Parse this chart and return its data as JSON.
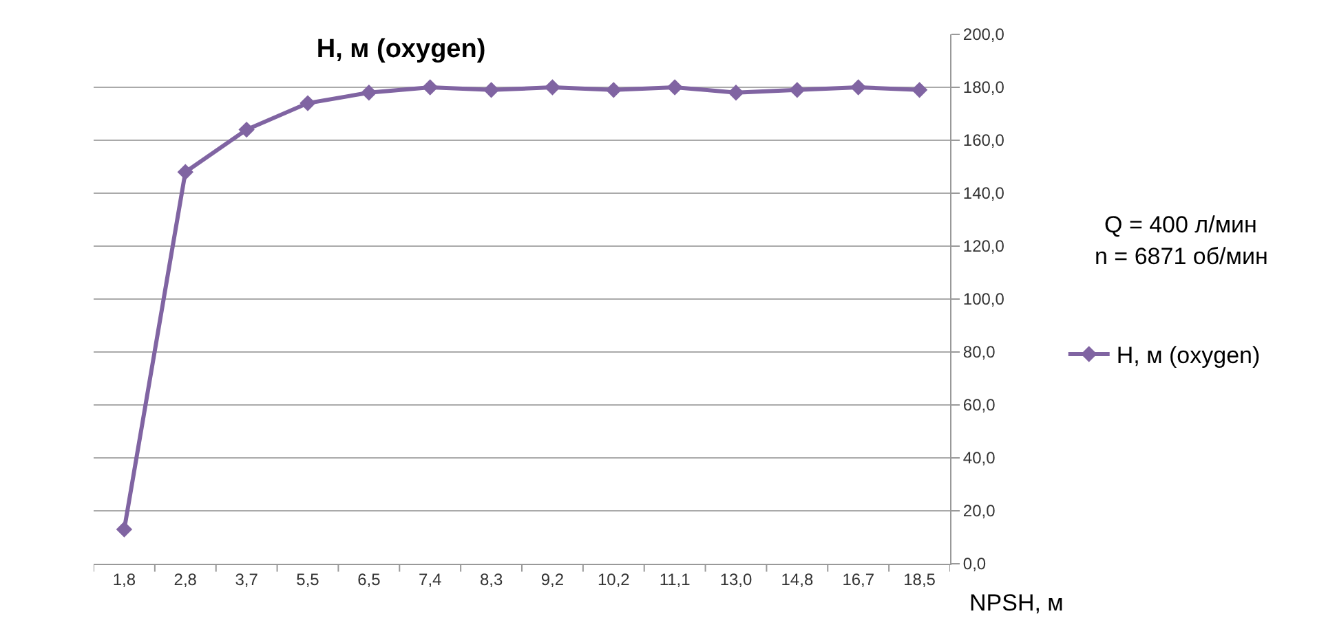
{
  "chart_data": {
    "type": "line",
    "title": "H, м (oxygen)",
    "xlabel": "NPSH, м",
    "categories": [
      "1,8",
      "2,8",
      "3,7",
      "5,5",
      "6,5",
      "7,4",
      "8,3",
      "9,2",
      "10,2",
      "11,1",
      "13,0",
      "14,8",
      "16,7",
      "18,5"
    ],
    "series": [
      {
        "name": "H, м (oxygen)",
        "color": "#8064a2",
        "values": [
          13,
          148,
          164,
          174,
          178,
          180,
          179,
          180,
          179,
          180,
          178,
          179,
          180,
          179
        ]
      }
    ],
    "ylim": [
      0,
      200
    ],
    "yticks": [
      {
        "value": 0,
        "label": "0,0"
      },
      {
        "value": 20,
        "label": "20,0"
      },
      {
        "value": 40,
        "label": "40,0"
      },
      {
        "value": 60,
        "label": "60,0"
      },
      {
        "value": 80,
        "label": "80,0"
      },
      {
        "value": 100,
        "label": "100,0"
      },
      {
        "value": 120,
        "label": "120,0"
      },
      {
        "value": 140,
        "label": "140,0"
      },
      {
        "value": 160,
        "label": "160,0"
      },
      {
        "value": 180,
        "label": "180,0"
      },
      {
        "value": 200,
        "label": "200,0"
      }
    ],
    "annotations": [
      "Q = 400 л/мин",
      "n = 6871 об/мин"
    ],
    "grid": "y",
    "legend": "right",
    "marker": "diamond",
    "line_style": "solid"
  }
}
